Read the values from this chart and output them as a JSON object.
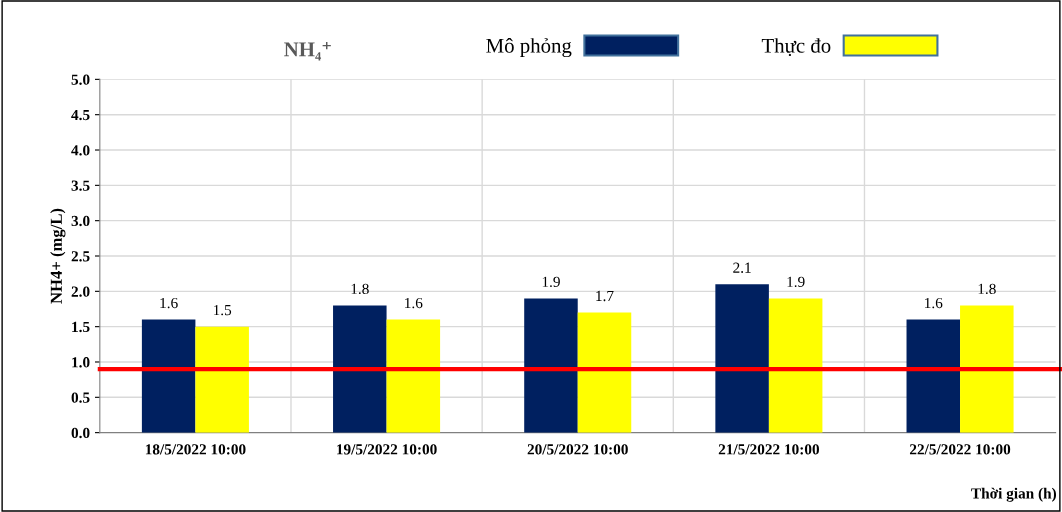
{
  "chart_data": {
    "type": "bar",
    "title": "NH₄⁺",
    "ylabel": "NH4+ (mg/L)",
    "xlabel": "Thời gian (h)",
    "categories": [
      "18/5/2022 10:00",
      "19/5/2022 10:00",
      "20/5/2022 10:00",
      "21/5/2022 10:00",
      "22/5/2022 10:00"
    ],
    "series": [
      {
        "name": "Mô phỏng",
        "color": "#002060",
        "values": [
          1.6,
          1.8,
          1.9,
          2.1,
          1.6
        ]
      },
      {
        "name": "Thực đo",
        "color": "#ffff00",
        "values": [
          1.5,
          1.6,
          1.7,
          1.9,
          1.8
        ]
      }
    ],
    "ylim": [
      0,
      5
    ],
    "yticks": [
      {
        "value": 0,
        "label": "0.0"
      },
      {
        "value": 0.5,
        "label": "0.5"
      },
      {
        "value": 1,
        "label": "1.0"
      },
      {
        "value": 1.5,
        "label": "1.5"
      },
      {
        "value": 2,
        "label": "2.0"
      },
      {
        "value": 2.5,
        "label": "2.5"
      },
      {
        "value": 3,
        "label": "3.0"
      },
      {
        "value": 3.5,
        "label": "3.5"
      },
      {
        "value": 4,
        "label": "4.0"
      },
      {
        "value": 4.5,
        "label": "4.5"
      },
      {
        "value": 5,
        "label": "5.0"
      }
    ],
    "ref_lines": [
      {
        "axis": "y",
        "value": 0.9,
        "color": "#ff0000"
      }
    ],
    "data_labels": true,
    "grid": true,
    "legend": "top"
  }
}
